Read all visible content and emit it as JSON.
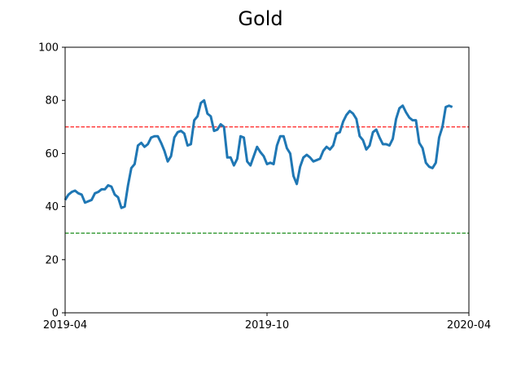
{
  "chart_data": {
    "type": "line",
    "title": "Gold",
    "xlabel": "",
    "ylabel": "",
    "ylim": [
      0,
      100
    ],
    "xlim": [
      "2019-04-01",
      "2020-04-01"
    ],
    "x_ticks": [
      {
        "date": "2019-04-01",
        "label": "2019-04"
      },
      {
        "date": "2019-10-01",
        "label": "2019-10"
      },
      {
        "date": "2020-04-01",
        "label": "2020-04"
      }
    ],
    "y_ticks": [
      0,
      20,
      40,
      60,
      80,
      100
    ],
    "grid": false,
    "reference_lines": [
      {
        "y": 70,
        "color": "#ff0000",
        "style": "dashed"
      },
      {
        "y": 30,
        "color": "#008000",
        "style": "dashed"
      }
    ],
    "series": [
      {
        "color": "#1f77b4",
        "points": [
          [
            "2019-04-01",
            42.5
          ],
          [
            "2019-04-04",
            44.5
          ],
          [
            "2019-04-07",
            45.5
          ],
          [
            "2019-04-10",
            46
          ],
          [
            "2019-04-13",
            45
          ],
          [
            "2019-04-16",
            44.5
          ],
          [
            "2019-04-19",
            41.5
          ],
          [
            "2019-04-22",
            42
          ],
          [
            "2019-04-25",
            42.5
          ],
          [
            "2019-04-28",
            45
          ],
          [
            "2019-05-01",
            45.5
          ],
          [
            "2019-05-04",
            46.5
          ],
          [
            "2019-05-07",
            46.5
          ],
          [
            "2019-05-10",
            48
          ],
          [
            "2019-05-13",
            47.5
          ],
          [
            "2019-05-16",
            44.5
          ],
          [
            "2019-05-19",
            43.5
          ],
          [
            "2019-05-22",
            39.5
          ],
          [
            "2019-05-25",
            40
          ],
          [
            "2019-05-28",
            48
          ],
          [
            "2019-05-31",
            54.5
          ],
          [
            "2019-06-03",
            56
          ],
          [
            "2019-06-06",
            63
          ],
          [
            "2019-06-09",
            64
          ],
          [
            "2019-06-12",
            62.5
          ],
          [
            "2019-06-15",
            63.5
          ],
          [
            "2019-06-18",
            66
          ],
          [
            "2019-06-21",
            66.5
          ],
          [
            "2019-06-24",
            66.5
          ],
          [
            "2019-06-27",
            64
          ],
          [
            "2019-06-30",
            61
          ],
          [
            "2019-07-03",
            57
          ],
          [
            "2019-07-06",
            59
          ],
          [
            "2019-07-09",
            66
          ],
          [
            "2019-07-12",
            68
          ],
          [
            "2019-07-15",
            68.5
          ],
          [
            "2019-07-18",
            67.5
          ],
          [
            "2019-07-21",
            63
          ],
          [
            "2019-07-24",
            63.5
          ],
          [
            "2019-07-27",
            72.5
          ],
          [
            "2019-07-30",
            74
          ],
          [
            "2019-08-02",
            79
          ],
          [
            "2019-08-05",
            80
          ],
          [
            "2019-08-08",
            75
          ],
          [
            "2019-08-11",
            74
          ],
          [
            "2019-08-14",
            68.5
          ],
          [
            "2019-08-17",
            69
          ],
          [
            "2019-08-20",
            71
          ],
          [
            "2019-08-23",
            70
          ],
          [
            "2019-08-26",
            58.5
          ],
          [
            "2019-08-29",
            58.5
          ],
          [
            "2019-09-01",
            55.5
          ],
          [
            "2019-09-04",
            58
          ],
          [
            "2019-09-07",
            66.5
          ],
          [
            "2019-09-10",
            66
          ],
          [
            "2019-09-13",
            57
          ],
          [
            "2019-09-16",
            55.5
          ],
          [
            "2019-09-19",
            59
          ],
          [
            "2019-09-22",
            62.5
          ],
          [
            "2019-09-25",
            60.5
          ],
          [
            "2019-09-28",
            59
          ],
          [
            "2019-10-01",
            56
          ],
          [
            "2019-10-04",
            56.5
          ],
          [
            "2019-10-07",
            56
          ],
          [
            "2019-10-10",
            63
          ],
          [
            "2019-10-13",
            66.5
          ],
          [
            "2019-10-16",
            66.5
          ],
          [
            "2019-10-19",
            62
          ],
          [
            "2019-10-22",
            60
          ],
          [
            "2019-10-25",
            51.5
          ],
          [
            "2019-10-28",
            48.5
          ],
          [
            "2019-10-31",
            55
          ],
          [
            "2019-11-03",
            58.5
          ],
          [
            "2019-11-06",
            59.5
          ],
          [
            "2019-11-09",
            58.5
          ],
          [
            "2019-11-12",
            57
          ],
          [
            "2019-11-15",
            57.5
          ],
          [
            "2019-11-18",
            58
          ],
          [
            "2019-11-21",
            61
          ],
          [
            "2019-11-24",
            62.5
          ],
          [
            "2019-11-27",
            61.5
          ],
          [
            "2019-11-30",
            63
          ],
          [
            "2019-12-03",
            67.5
          ],
          [
            "2019-12-06",
            68
          ],
          [
            "2019-12-09",
            72
          ],
          [
            "2019-12-12",
            74.5
          ],
          [
            "2019-12-15",
            76
          ],
          [
            "2019-12-18",
            75
          ],
          [
            "2019-12-21",
            73
          ],
          [
            "2019-12-24",
            66.5
          ],
          [
            "2019-12-27",
            65
          ],
          [
            "2019-12-30",
            61.5
          ],
          [
            "2020-01-02",
            63
          ],
          [
            "2020-01-05",
            68
          ],
          [
            "2020-01-08",
            69
          ],
          [
            "2020-01-11",
            66
          ],
          [
            "2020-01-14",
            63.5
          ],
          [
            "2020-01-17",
            63.5
          ],
          [
            "2020-01-20",
            63
          ],
          [
            "2020-01-23",
            65.5
          ],
          [
            "2020-01-26",
            73
          ],
          [
            "2020-01-29",
            77
          ],
          [
            "2020-02-01",
            78
          ],
          [
            "2020-02-04",
            75.5
          ],
          [
            "2020-02-07",
            73.5
          ],
          [
            "2020-02-10",
            72.5
          ],
          [
            "2020-02-13",
            72.5
          ],
          [
            "2020-02-16",
            64
          ],
          [
            "2020-02-19",
            62
          ],
          [
            "2020-02-22",
            56.5
          ],
          [
            "2020-02-25",
            55
          ],
          [
            "2020-02-28",
            54.5
          ],
          [
            "2020-03-02",
            56.5
          ],
          [
            "2020-03-05",
            66
          ],
          [
            "2020-03-08",
            70
          ],
          [
            "2020-03-11",
            77.5
          ],
          [
            "2020-03-14",
            78
          ],
          [
            "2020-03-17",
            77.5
          ]
        ]
      }
    ]
  }
}
